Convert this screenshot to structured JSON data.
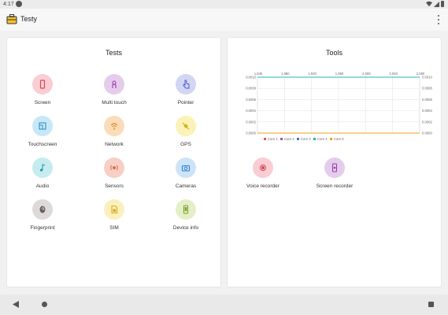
{
  "status_bar": {
    "time": "4:17"
  },
  "app_bar": {
    "title": "Testy",
    "logo_icon": "toolbox-icon",
    "menu_icon": "overflow-menu-icon"
  },
  "tests": {
    "title": "Tests",
    "items": [
      {
        "label": "Screen",
        "icon": "smartphone-icon",
        "bg": "#f9cdd3",
        "fg": "#d9465c"
      },
      {
        "label": "Multi touch",
        "icon": "multi-touch-icon",
        "bg": "#e6ccec",
        "fg": "#9240a8"
      },
      {
        "label": "Pointer",
        "icon": "pointer-hand-icon",
        "bg": "#d2d6f2",
        "fg": "#4d58c7"
      },
      {
        "label": "Touchscreen",
        "icon": "touchscreen-icon",
        "bg": "#c8e8f7",
        "fg": "#2a93cc"
      },
      {
        "label": "Network",
        "icon": "network-icon",
        "bg": "#fbdcb8",
        "fg": "#e3872a"
      },
      {
        "label": "GPS",
        "icon": "gps-satellite-icon",
        "bg": "#fbf2b7",
        "fg": "#d3b01c"
      },
      {
        "label": "Audio",
        "icon": "music-note-icon",
        "bg": "#c6ecef",
        "fg": "#219aa8"
      },
      {
        "label": "Sensors",
        "icon": "sensors-icon",
        "bg": "#f8cfc4",
        "fg": "#e06a46"
      },
      {
        "label": "Cameras",
        "icon": "camera-icon",
        "bg": "#cde3f7",
        "fg": "#2e80cf"
      },
      {
        "label": "Fingerprint",
        "icon": "fingerprint-icon",
        "bg": "#dedada",
        "fg": "#6b5e58"
      },
      {
        "label": "SIM",
        "icon": "sim-card-icon",
        "bg": "#fbf0bd",
        "fg": "#d7a91e"
      },
      {
        "label": "Device info",
        "icon": "device-info-icon",
        "bg": "#e4efc8",
        "fg": "#7aa233"
      }
    ]
  },
  "tools": {
    "title": "Tools",
    "items": [
      {
        "label": "Voice recorder",
        "icon": "record-icon",
        "bg": "#f9cdd3",
        "fg": "#d9465c"
      },
      {
        "label": "Screen recorder",
        "icon": "screen-recorder-icon",
        "bg": "#e6ccec",
        "fg": "#9240a8"
      }
    ]
  },
  "chart_data": {
    "type": "line",
    "x_ticks": [
      "1,840",
      "1,880",
      "1,920",
      "1,960",
      "2,000",
      "2,040",
      "2,080"
    ],
    "y_ticks_left": [
      "0.0010",
      "0.0008",
      "0.0006",
      "0.0004",
      "0.0002",
      "0.0000"
    ],
    "y_ticks_right": [
      "0.0010",
      "0.0008",
      "0.0006",
      "0.0004",
      "0.0002",
      "0.0000"
    ],
    "ylim": [
      0,
      0.001
    ],
    "grid": true,
    "legend_position": "bottom",
    "series": [
      {
        "name": "Core 1",
        "color": "#e8505b",
        "value": 0.001
      },
      {
        "name": "Core 2",
        "color": "#9b59b6",
        "value": 0.001
      },
      {
        "name": "Core 3",
        "color": "#3f6fd8",
        "value": 0.001
      },
      {
        "name": "Core 4",
        "color": "#1ab6c4",
        "value": 0.001
      },
      {
        "name": "Core 5",
        "color": "#f0a020",
        "value": 0.0
      }
    ]
  }
}
